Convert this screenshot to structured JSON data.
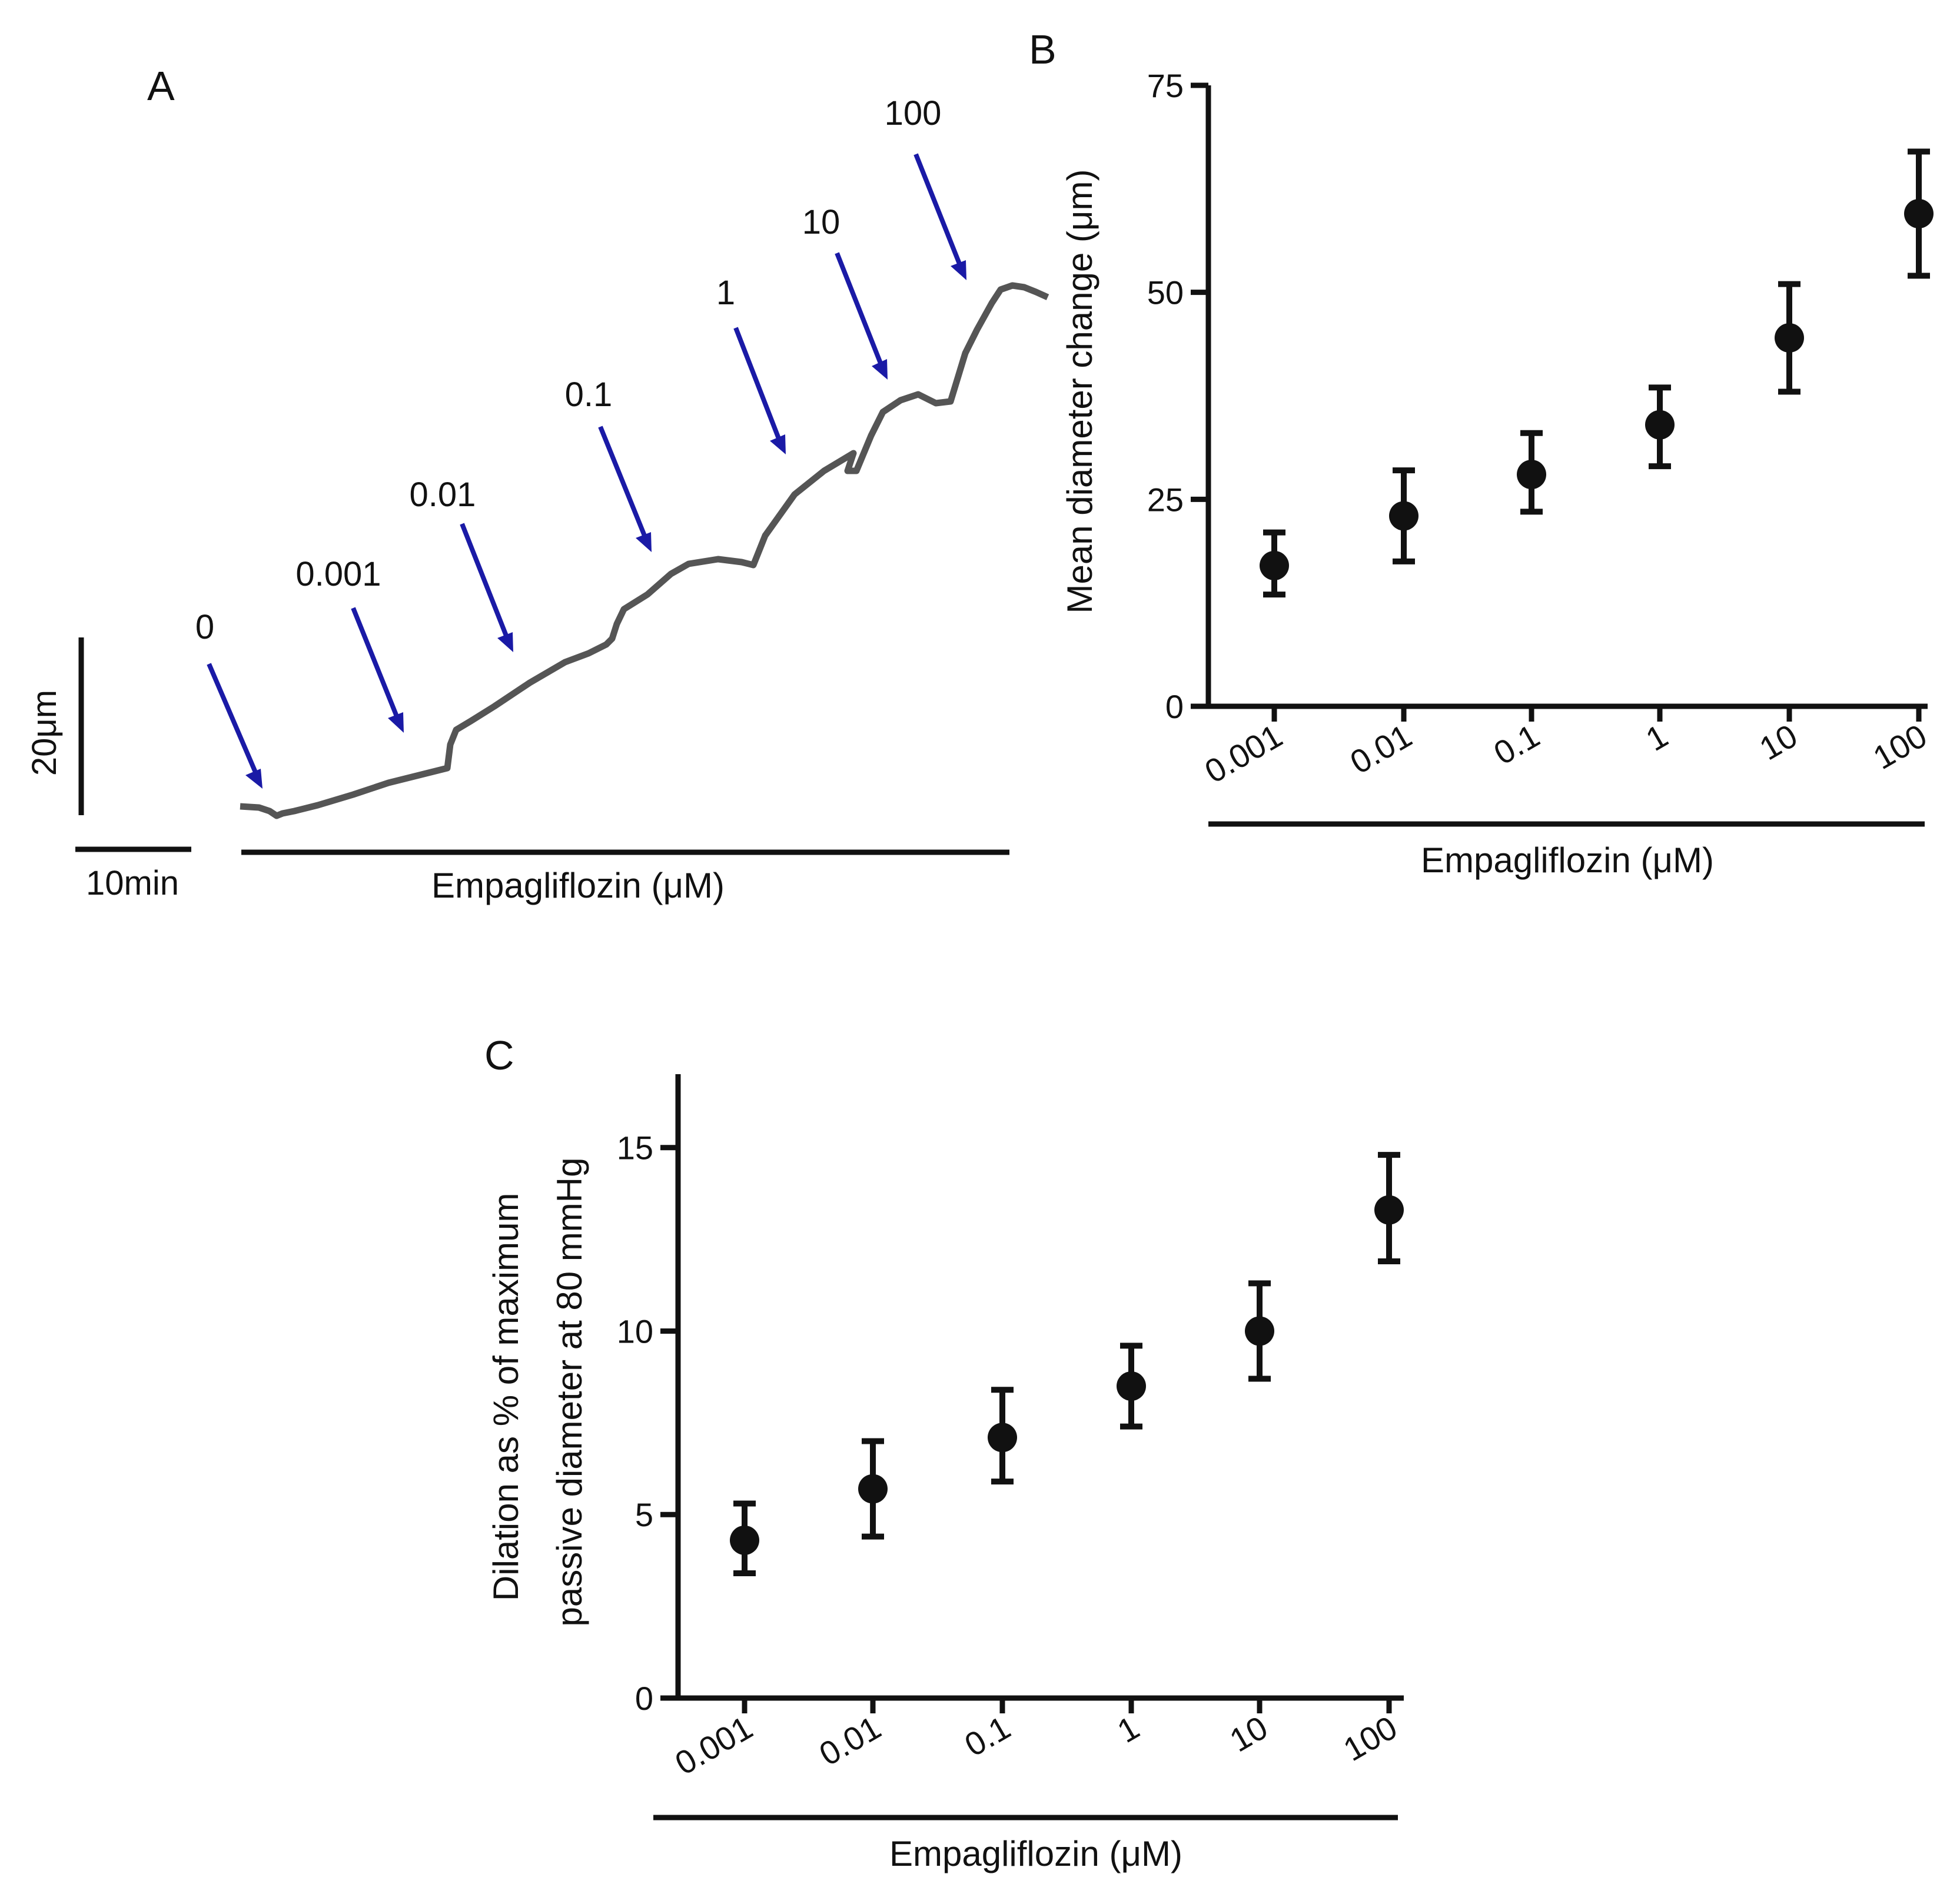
{
  "colors": {
    "ink": "#111111",
    "trace": "#555555",
    "arrow": "#1a1aa6"
  },
  "panelA": {
    "letter": "A",
    "xlabel": "Empagliflozin (μM)",
    "scale_y_label": "20μm",
    "scale_x_label": "10min",
    "arrow_labels": [
      "0",
      "0.001",
      "0.01",
      "0.1",
      "1",
      "10",
      "100"
    ]
  },
  "chart_data": [
    {
      "type": "scatter",
      "panel": "B",
      "title": "",
      "xlabel": "Empagliflozin (μM)",
      "ylabel": "Mean diameter change (μm)",
      "categories": [
        "0.001",
        "0.01",
        "0.1",
        "1",
        "10",
        "100"
      ],
      "values": [
        17,
        23,
        28,
        34,
        44.5,
        59.5
      ],
      "err_low": [
        13.5,
        17.5,
        23.5,
        29,
        38,
        52
      ],
      "err_high": [
        21,
        28.5,
        33,
        38.5,
        51,
        67
      ],
      "ylim": [
        0,
        75
      ],
      "yticks": [
        "0",
        "25",
        "50",
        "75"
      ],
      "legend": "none"
    },
    {
      "type": "scatter",
      "panel": "C",
      "title": "",
      "xlabel": "Empagliflozin (μM)",
      "ylabel": "Dilation as % of maximum passive diameter at 80 mmHg",
      "ylabel_lines": [
        "Dilation as % of maximum",
        "passive diameter at 80 mmHg"
      ],
      "categories": [
        "0.001",
        "0.01",
        "0.1",
        "1",
        "10",
        "100"
      ],
      "values": [
        4.3,
        5.7,
        7.1,
        8.5,
        10,
        13.3
      ],
      "err_low": [
        3.4,
        4.4,
        5.9,
        7.4,
        8.7,
        11.9
      ],
      "err_high": [
        5.3,
        7,
        8.4,
        9.6,
        11.3,
        14.8
      ],
      "ylim": [
        0,
        17
      ],
      "yticks": [
        "0",
        "5",
        "10",
        "15"
      ],
      "legend": "none"
    }
  ]
}
